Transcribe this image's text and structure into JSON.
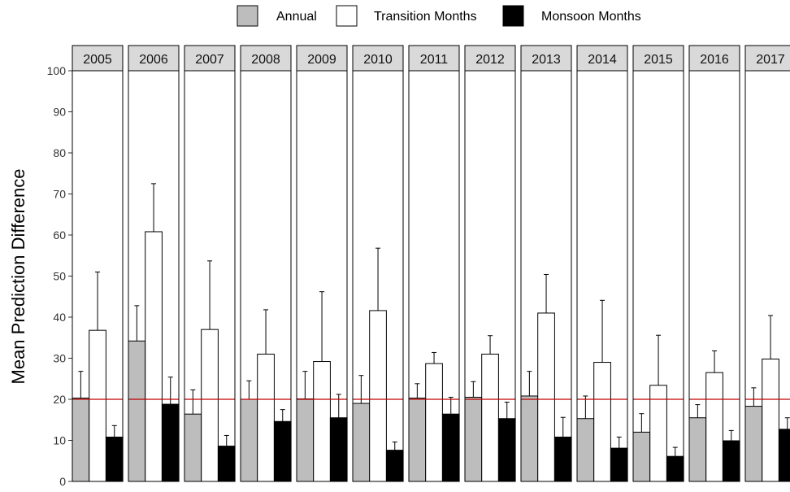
{
  "chart_data": {
    "type": "bar",
    "title": "",
    "xlabel": "",
    "ylabel": "Mean Prediction Difference",
    "ylim": [
      0,
      100
    ],
    "yticks": [
      0,
      10,
      20,
      30,
      40,
      50,
      60,
      70,
      80,
      90,
      100
    ],
    "grid": false,
    "legend_position": "top",
    "reference_line": {
      "value": 20,
      "color": "#c00000"
    },
    "colors": {
      "annual": "#bdbdbd",
      "transition": "#ffffff",
      "monsoon": "#000000",
      "strip": "#d9d9d9",
      "outline": "#000000"
    },
    "facets": [
      "2005",
      "2006",
      "2007",
      "2008",
      "2009",
      "2010",
      "2011",
      "2012",
      "2013",
      "2014",
      "2015",
      "2016",
      "2017"
    ],
    "series": [
      {
        "name": "Annual",
        "values": [
          20.3,
          34.2,
          16.4,
          20.0,
          20.1,
          19.0,
          20.3,
          20.5,
          20.8,
          15.3,
          12.0,
          15.5,
          18.3
        ],
        "error_upper": [
          26.8,
          42.8,
          22.3,
          24.5,
          26.8,
          25.8,
          23.8,
          24.3,
          26.8,
          20.8,
          16.5,
          18.7,
          22.8
        ]
      },
      {
        "name": "Transition Months",
        "values": [
          36.8,
          60.8,
          37.0,
          31.0,
          29.2,
          41.6,
          28.7,
          31.0,
          41.0,
          29.0,
          23.4,
          26.5,
          29.8
        ],
        "error_upper": [
          51.0,
          72.5,
          53.7,
          41.8,
          46.2,
          56.8,
          31.4,
          35.5,
          50.4,
          44.1,
          35.6,
          31.8,
          40.4
        ]
      },
      {
        "name": "Monsoon Months",
        "values": [
          10.8,
          18.8,
          8.6,
          14.6,
          15.5,
          7.6,
          16.4,
          15.3,
          10.8,
          8.1,
          6.1,
          9.9,
          12.7
        ],
        "error_upper": [
          13.6,
          25.4,
          11.2,
          17.5,
          21.2,
          9.6,
          20.5,
          19.3,
          15.6,
          10.8,
          8.3,
          12.4,
          15.5
        ]
      }
    ]
  }
}
